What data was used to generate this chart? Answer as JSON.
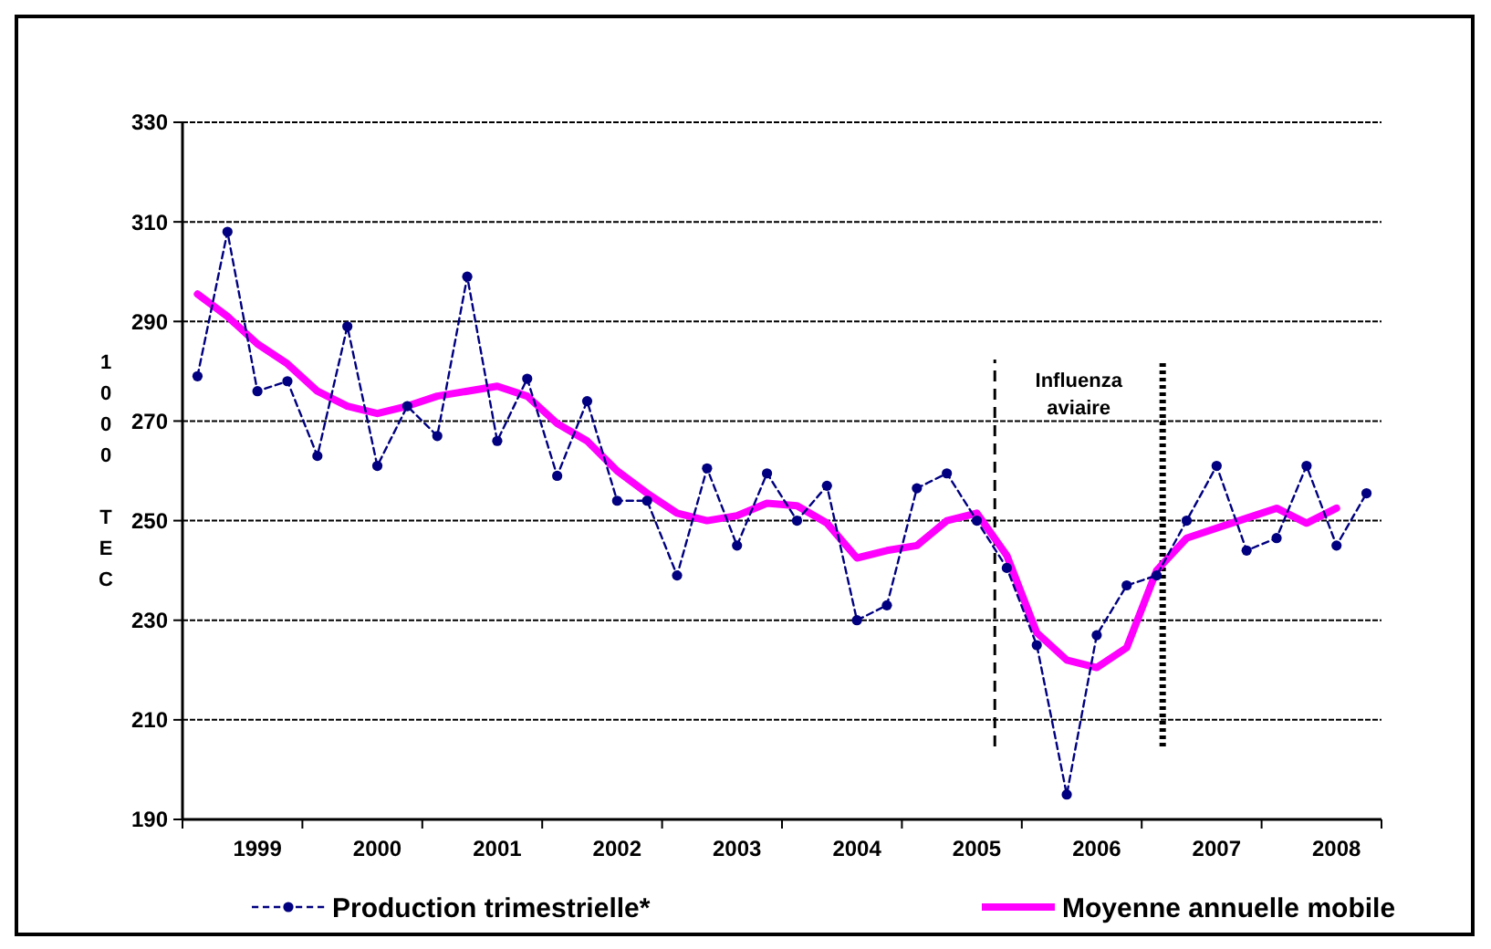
{
  "chart_data": {
    "type": "line",
    "ylabel": "1000 TEC",
    "x": [
      1999,
      1999.25,
      1999.5,
      1999.75,
      2000,
      2000.25,
      2000.5,
      2000.75,
      2001,
      2001.25,
      2001.5,
      2001.75,
      2002,
      2002.25,
      2002.5,
      2002.75,
      2003,
      2003.25,
      2003.5,
      2003.75,
      2004,
      2004.25,
      2004.5,
      2004.75,
      2005,
      2005.25,
      2005.5,
      2005.75,
      2006,
      2006.25,
      2006.5,
      2006.75,
      2007,
      2007.25,
      2007.5,
      2007.75,
      2008,
      2008.25,
      2008.5,
      2008.75
    ],
    "series": [
      {
        "name": "Production trimestrielle*",
        "color": "#000080",
        "marker": "circle",
        "line_style": "dashed",
        "values": [
          279,
          308,
          276,
          278,
          263,
          289,
          261,
          273,
          267,
          299,
          266,
          278.5,
          259,
          274,
          254,
          254,
          239,
          260.5,
          245,
          259.5,
          250,
          257,
          230,
          233,
          256.5,
          259.5,
          250,
          240.5,
          225,
          195,
          227,
          237,
          239,
          250,
          261,
          244,
          246.5,
          261,
          245,
          255.5
        ]
      },
      {
        "name": "Moyenne annuelle mobile",
        "color": "#ff00ff",
        "marker": "none",
        "line_style": "solid",
        "values": [
          295.5,
          291,
          285.5,
          281.5,
          276,
          273,
          271.5,
          273,
          275,
          276,
          277,
          275,
          269.5,
          266,
          260,
          255.5,
          251.5,
          250,
          251,
          253.5,
          253,
          249.5,
          242.5,
          244,
          245,
          250,
          251.5,
          243,
          227.5,
          222,
          220.5,
          224.5,
          240,
          246.5,
          248.5,
          250.5,
          252.5,
          249.5,
          252.5,
          null
        ]
      }
    ],
    "xlim": [
      1998.875,
      2008.875
    ],
    "xticks": [
      {
        "value": 1998.875,
        "label": null
      },
      {
        "value": 1999.5,
        "label": "1999"
      },
      {
        "value": 1999.875,
        "label": null
      },
      {
        "value": 2000.5,
        "label": "2000"
      },
      {
        "value": 2000.875,
        "label": null
      },
      {
        "value": 2001.5,
        "label": "2001"
      },
      {
        "value": 2001.875,
        "label": null
      },
      {
        "value": 2002.5,
        "label": "2002"
      },
      {
        "value": 2002.875,
        "label": null
      },
      {
        "value": 2003.5,
        "label": "2003"
      },
      {
        "value": 2003.875,
        "label": null
      },
      {
        "value": 2004.5,
        "label": "2004"
      },
      {
        "value": 2004.875,
        "label": null
      },
      {
        "value": 2005.5,
        "label": "2005"
      },
      {
        "value": 2005.875,
        "label": null
      },
      {
        "value": 2006.5,
        "label": "2006"
      },
      {
        "value": 2006.875,
        "label": null
      },
      {
        "value": 2007.5,
        "label": "2007"
      },
      {
        "value": 2007.875,
        "label": null
      },
      {
        "value": 2008.5,
        "label": "2008"
      },
      {
        "value": 2008.875,
        "label": null
      }
    ],
    "ylim": [
      190,
      330
    ],
    "yticks": [
      190,
      210,
      230,
      250,
      270,
      290,
      310,
      330
    ],
    "grid": "y",
    "legend": "bottom",
    "ref_lines": [
      {
        "axis": "x",
        "value": 2005.65,
        "line_style": "dashed",
        "color": "#000000"
      },
      {
        "axis": "x",
        "value": 2007.05,
        "line_style": "dotted",
        "color": "#000000"
      }
    ],
    "annotations": [
      "Influenza aviaire"
    ]
  }
}
